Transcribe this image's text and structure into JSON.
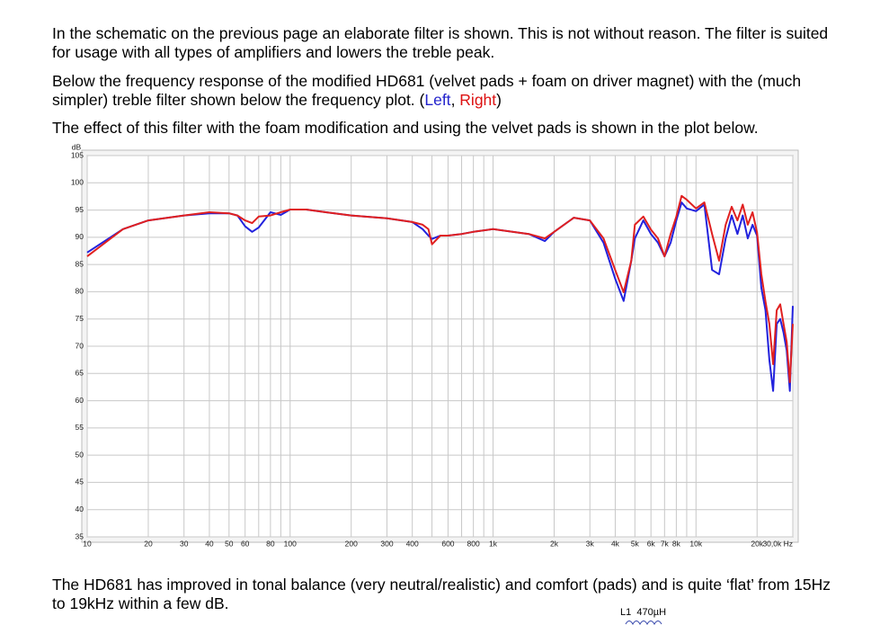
{
  "paragraphs": [
    "In the schematic on the previous page an elaborate filter is shown. This is not without reason. The filter is suited for usage with all types of amplifiers and lowers the treble peak.",
    {
      "text": "Below the frequency response of the modified HD681 (velvet pads + foam on driver magnet) with the (much simpler) treble filter shown below the frequency plot. (",
      "left": "Left",
      "sep": ", ",
      "right": "Right",
      "end": ")"
    },
    "The effect of this filter with the foam modification and using the velvet pads is shown in the plot below.",
    "The HD681 has improved in tonal balance (very neutral/realistic) and comfort (pads) and is quite ‘flat’ from 15Hz to 19kHz within a few dB."
  ],
  "schematic": {
    "ref": "L1",
    "value": "470µH"
  },
  "chart_data": {
    "type": "line",
    "y_label": "dB",
    "log_x": true,
    "grid": true,
    "x": [
      10,
      15,
      20,
      30,
      40,
      50,
      55,
      60,
      65,
      70,
      80,
      90,
      100,
      120,
      150,
      200,
      300,
      400,
      450,
      480,
      500,
      550,
      600,
      700,
      800,
      1000,
      1500,
      1800,
      2000,
      2500,
      3000,
      3500,
      4000,
      4400,
      4800,
      5000,
      5500,
      6000,
      6500,
      7000,
      7500,
      8000,
      8500,
      9000,
      10000,
      11000,
      12000,
      13000,
      14000,
      15000,
      16000,
      17000,
      18000,
      19000,
      20000,
      21000,
      22000,
      23000,
      24000,
      25000,
      26000,
      27000,
      28000,
      29000,
      30000
    ],
    "series": [
      {
        "name": "Left",
        "color": "#2222dd",
        "values": [
          87.2,
          91.5,
          93.1,
          94,
          94.4,
          94.4,
          94,
          92,
          91,
          91.8,
          94.6,
          94.1,
          95.1,
          95.1,
          94.6,
          94,
          93.5,
          92.8,
          91.5,
          90.3,
          89.7,
          90.3,
          90.3,
          90.6,
          91,
          91.5,
          90.6,
          89.3,
          91,
          93.6,
          93.1,
          89,
          82.4,
          78.3,
          85.7,
          89.8,
          93.1,
          90.6,
          89,
          86.5,
          89,
          93.1,
          96.4,
          95.3,
          94.8,
          96,
          84,
          83.2,
          89.8,
          94,
          90.6,
          94,
          89.8,
          92.3,
          90.3,
          80.7,
          76.6,
          67.5,
          61.8,
          74.1,
          75,
          72.5,
          69.2,
          61.8,
          77.4
        ]
      },
      {
        "name": "Right",
        "color": "#e02020",
        "values": [
          86.5,
          91.5,
          93.1,
          94,
          94.6,
          94.4,
          94,
          93.1,
          92.6,
          93.8,
          94,
          94.6,
          95.1,
          95.1,
          94.6,
          94,
          93.5,
          92.8,
          92.3,
          91.5,
          88.7,
          90.3,
          90.3,
          90.6,
          91,
          91.5,
          90.6,
          89.8,
          91,
          93.6,
          93.1,
          89.8,
          84,
          79.9,
          85.7,
          92.3,
          93.8,
          91.4,
          89.8,
          86.5,
          90.6,
          93.8,
          97.6,
          96.9,
          95.3,
          96.4,
          90.6,
          85.7,
          92.3,
          95.6,
          93.1,
          96,
          92.3,
          94.6,
          90.9,
          83.2,
          78.2,
          74.1,
          66.7,
          76.6,
          77.7,
          74.1,
          70.8,
          63.4,
          74.1
        ]
      }
    ],
    "xlim": [
      10,
      30000
    ],
    "ylim": [
      35,
      105
    ],
    "xticks": [
      10,
      20,
      30,
      40,
      50,
      60,
      80,
      100,
      200,
      300,
      400,
      600,
      800,
      {
        "value": 1000,
        "label": "1k"
      },
      {
        "value": 2000,
        "label": "2k"
      },
      {
        "value": 3000,
        "label": "3k"
      },
      {
        "value": 4000,
        "label": "4k"
      },
      {
        "value": 5000,
        "label": "5k"
      },
      {
        "value": 6000,
        "label": "6k"
      },
      {
        "value": 7000,
        "label": "7k"
      },
      {
        "value": 8000,
        "label": "8k"
      },
      {
        "value": 10000,
        "label": "10k"
      },
      {
        "value": 20000,
        "label": "20k"
      },
      {
        "value": 30000,
        "label": "30,0k Hz"
      }
    ],
    "x_minor_grid": [
      70,
      90,
      500,
      700,
      900,
      9000
    ],
    "yticks": [
      35,
      40,
      45,
      50,
      55,
      60,
      65,
      70,
      75,
      80,
      85,
      90,
      95,
      100,
      105
    ]
  }
}
